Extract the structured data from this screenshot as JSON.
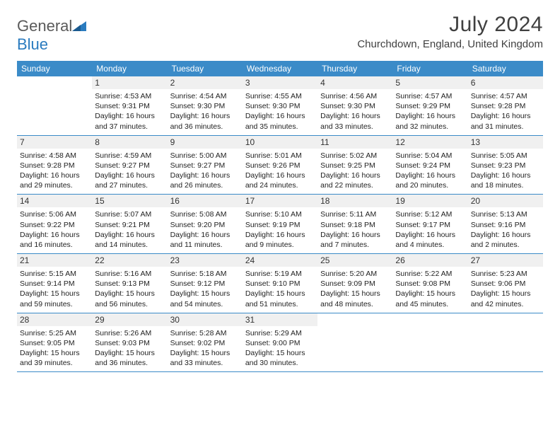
{
  "logo": {
    "text1": "General",
    "text2": "Blue"
  },
  "title": "July 2024",
  "location": "Churchdown, England, United Kingdom",
  "colors": {
    "header_bg": "#3b8bc8",
    "header_text": "#ffffff",
    "daynum_bg": "#f0f0f0",
    "rule": "#3b8bc8",
    "logo_blue": "#2a7bbf",
    "logo_gray": "#5a5a5a"
  },
  "day_names": [
    "Sunday",
    "Monday",
    "Tuesday",
    "Wednesday",
    "Thursday",
    "Friday",
    "Saturday"
  ],
  "weeks": [
    [
      null,
      {
        "n": "1",
        "sr": "4:53 AM",
        "ss": "9:31 PM",
        "dl": "16 hours and 37 minutes."
      },
      {
        "n": "2",
        "sr": "4:54 AM",
        "ss": "9:30 PM",
        "dl": "16 hours and 36 minutes."
      },
      {
        "n": "3",
        "sr": "4:55 AM",
        "ss": "9:30 PM",
        "dl": "16 hours and 35 minutes."
      },
      {
        "n": "4",
        "sr": "4:56 AM",
        "ss": "9:30 PM",
        "dl": "16 hours and 33 minutes."
      },
      {
        "n": "5",
        "sr": "4:57 AM",
        "ss": "9:29 PM",
        "dl": "16 hours and 32 minutes."
      },
      {
        "n": "6",
        "sr": "4:57 AM",
        "ss": "9:28 PM",
        "dl": "16 hours and 31 minutes."
      }
    ],
    [
      {
        "n": "7",
        "sr": "4:58 AM",
        "ss": "9:28 PM",
        "dl": "16 hours and 29 minutes."
      },
      {
        "n": "8",
        "sr": "4:59 AM",
        "ss": "9:27 PM",
        "dl": "16 hours and 27 minutes."
      },
      {
        "n": "9",
        "sr": "5:00 AM",
        "ss": "9:27 PM",
        "dl": "16 hours and 26 minutes."
      },
      {
        "n": "10",
        "sr": "5:01 AM",
        "ss": "9:26 PM",
        "dl": "16 hours and 24 minutes."
      },
      {
        "n": "11",
        "sr": "5:02 AM",
        "ss": "9:25 PM",
        "dl": "16 hours and 22 minutes."
      },
      {
        "n": "12",
        "sr": "5:04 AM",
        "ss": "9:24 PM",
        "dl": "16 hours and 20 minutes."
      },
      {
        "n": "13",
        "sr": "5:05 AM",
        "ss": "9:23 PM",
        "dl": "16 hours and 18 minutes."
      }
    ],
    [
      {
        "n": "14",
        "sr": "5:06 AM",
        "ss": "9:22 PM",
        "dl": "16 hours and 16 minutes."
      },
      {
        "n": "15",
        "sr": "5:07 AM",
        "ss": "9:21 PM",
        "dl": "16 hours and 14 minutes."
      },
      {
        "n": "16",
        "sr": "5:08 AM",
        "ss": "9:20 PM",
        "dl": "16 hours and 11 minutes."
      },
      {
        "n": "17",
        "sr": "5:10 AM",
        "ss": "9:19 PM",
        "dl": "16 hours and 9 minutes."
      },
      {
        "n": "18",
        "sr": "5:11 AM",
        "ss": "9:18 PM",
        "dl": "16 hours and 7 minutes."
      },
      {
        "n": "19",
        "sr": "5:12 AM",
        "ss": "9:17 PM",
        "dl": "16 hours and 4 minutes."
      },
      {
        "n": "20",
        "sr": "5:13 AM",
        "ss": "9:16 PM",
        "dl": "16 hours and 2 minutes."
      }
    ],
    [
      {
        "n": "21",
        "sr": "5:15 AM",
        "ss": "9:14 PM",
        "dl": "15 hours and 59 minutes."
      },
      {
        "n": "22",
        "sr": "5:16 AM",
        "ss": "9:13 PM",
        "dl": "15 hours and 56 minutes."
      },
      {
        "n": "23",
        "sr": "5:18 AM",
        "ss": "9:12 PM",
        "dl": "15 hours and 54 minutes."
      },
      {
        "n": "24",
        "sr": "5:19 AM",
        "ss": "9:10 PM",
        "dl": "15 hours and 51 minutes."
      },
      {
        "n": "25",
        "sr": "5:20 AM",
        "ss": "9:09 PM",
        "dl": "15 hours and 48 minutes."
      },
      {
        "n": "26",
        "sr": "5:22 AM",
        "ss": "9:08 PM",
        "dl": "15 hours and 45 minutes."
      },
      {
        "n": "27",
        "sr": "5:23 AM",
        "ss": "9:06 PM",
        "dl": "15 hours and 42 minutes."
      }
    ],
    [
      {
        "n": "28",
        "sr": "5:25 AM",
        "ss": "9:05 PM",
        "dl": "15 hours and 39 minutes."
      },
      {
        "n": "29",
        "sr": "5:26 AM",
        "ss": "9:03 PM",
        "dl": "15 hours and 36 minutes."
      },
      {
        "n": "30",
        "sr": "5:28 AM",
        "ss": "9:02 PM",
        "dl": "15 hours and 33 minutes."
      },
      {
        "n": "31",
        "sr": "5:29 AM",
        "ss": "9:00 PM",
        "dl": "15 hours and 30 minutes."
      },
      null,
      null,
      null
    ]
  ],
  "labels": {
    "sunrise": "Sunrise:",
    "sunset": "Sunset:",
    "daylight": "Daylight:"
  }
}
